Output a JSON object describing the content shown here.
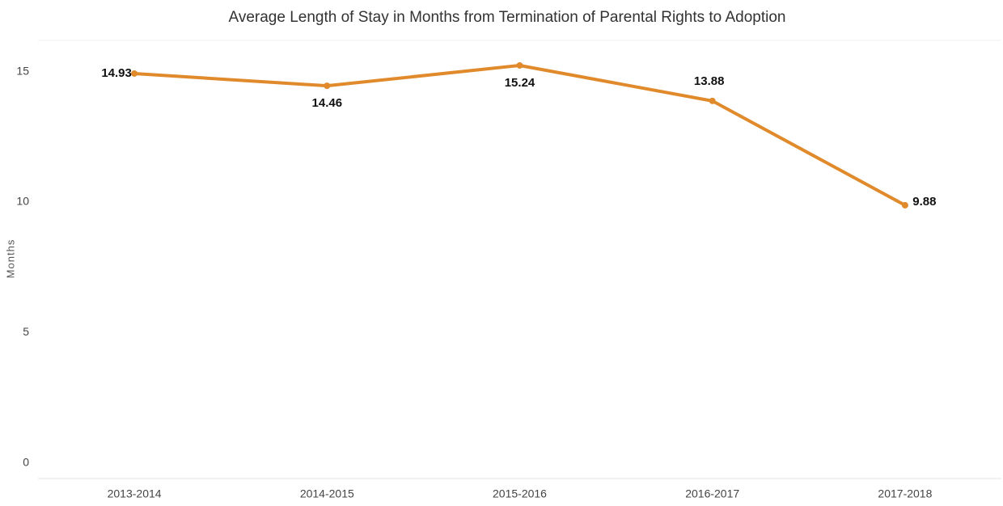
{
  "chart_data": {
    "type": "line",
    "title": "Average Length of Stay in Months from Termination of Parental Rights to Adoption",
    "y_label": "Months",
    "categories": [
      "2013-2014",
      "2014-2015",
      "2015-2016",
      "2016-2017",
      "2017-2018"
    ],
    "series": [
      {
        "name": "Average Length of Stay",
        "color": "#e08a2c",
        "values": [
          14.93,
          14.46,
          15.24,
          13.88,
          9.88
        ]
      }
    ],
    "ylim": [
      -0.6,
      16.2
    ],
    "yticks": [
      0,
      5,
      10,
      15
    ],
    "grid": false
  }
}
